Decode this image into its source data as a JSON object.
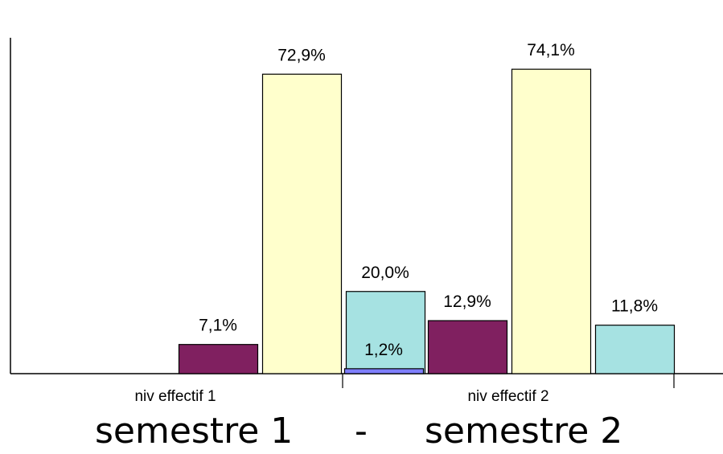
{
  "chart_data": {
    "type": "bar",
    "categories": [
      "niv effectif 1",
      "niv effectif 2"
    ],
    "series": [
      {
        "values": [
          0.0,
          1.2
        ],
        "color": "#7f7fff"
      },
      {
        "values": [
          7.1,
          12.9
        ],
        "color": "#802060"
      },
      {
        "values": [
          72.9,
          74.1
        ],
        "color": "#ffffcc"
      },
      {
        "values": [
          20.0,
          11.8
        ],
        "color": "#a6e2e2"
      }
    ],
    "value_labels": [
      [
        "",
        "7,1%",
        "72,9%",
        "20,0%"
      ],
      [
        "1,2%",
        "12,9%",
        "74,1%",
        "11,8%"
      ]
    ],
    "ylim": [
      0,
      80
    ],
    "grid": false,
    "legend": "none"
  },
  "caption": {
    "left": "semestre 1",
    "separator": "-",
    "right": "semestre 2"
  }
}
